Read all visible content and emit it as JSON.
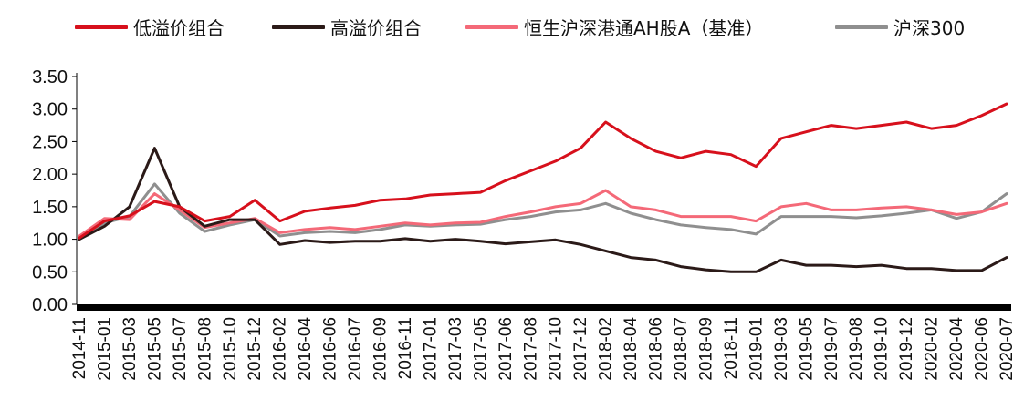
{
  "colors": {
    "low_premium": "#d7101c",
    "high_premium": "#2b1a18",
    "benchmark": "#f46978",
    "hs300": "#8f8f8f",
    "axis": "#000000"
  },
  "chart_data": {
    "type": "line",
    "title": "",
    "xlabel": "",
    "ylabel": "",
    "ylim": [
      0,
      3.5
    ],
    "yticks": [
      "0.00",
      "0.50",
      "1.00",
      "1.50",
      "2.00",
      "2.50",
      "3.00",
      "3.50"
    ],
    "grid": false,
    "legend_position": "top",
    "x": [
      "2014-11",
      "2015-01",
      "2015-03",
      "2015-05",
      "2015-07",
      "2015-08",
      "2015-10",
      "2015-12",
      "2016-02",
      "2016-04",
      "2016-06",
      "2016-07",
      "2016-09",
      "2016-11",
      "2017-01",
      "2017-03",
      "2017-05",
      "2017-06",
      "2017-08",
      "2017-10",
      "2017-12",
      "2018-02",
      "2018-04",
      "2018-06",
      "2018-07",
      "2018-09",
      "2018-11",
      "2019-01",
      "2019-03",
      "2019-05",
      "2019-07",
      "2019-08",
      "2019-10",
      "2019-12",
      "2020-02",
      "2020-04",
      "2020-06",
      "2020-07"
    ],
    "series": [
      {
        "name": "低溢价组合",
        "color_key": "low_premium",
        "values": [
          1.02,
          1.28,
          1.36,
          1.58,
          1.5,
          1.28,
          1.35,
          1.6,
          1.28,
          1.43,
          1.48,
          1.52,
          1.6,
          1.62,
          1.68,
          1.7,
          1.72,
          1.9,
          2.05,
          2.2,
          2.4,
          2.8,
          2.55,
          2.35,
          2.25,
          2.35,
          2.3,
          2.12,
          2.55,
          2.65,
          2.75,
          2.7,
          2.75,
          2.8,
          2.7,
          2.75,
          2.9,
          3.08
        ]
      },
      {
        "name": "高溢价组合",
        "color_key": "high_premium",
        "values": [
          1.0,
          1.2,
          1.5,
          2.4,
          1.5,
          1.2,
          1.3,
          1.3,
          0.92,
          0.98,
          0.95,
          0.97,
          0.97,
          1.01,
          0.97,
          1.0,
          0.97,
          0.93,
          0.96,
          0.99,
          0.92,
          0.82,
          0.72,
          0.68,
          0.58,
          0.53,
          0.5,
          0.5,
          0.68,
          0.6,
          0.6,
          0.58,
          0.6,
          0.55,
          0.55,
          0.52,
          0.52,
          0.72
        ]
      },
      {
        "name": "恒生沪深港通AH股A（基准）",
        "color_key": "benchmark",
        "values": [
          1.05,
          1.32,
          1.3,
          1.7,
          1.45,
          1.18,
          1.25,
          1.32,
          1.1,
          1.15,
          1.18,
          1.15,
          1.2,
          1.25,
          1.22,
          1.25,
          1.26,
          1.35,
          1.42,
          1.5,
          1.55,
          1.75,
          1.5,
          1.45,
          1.35,
          1.35,
          1.35,
          1.28,
          1.5,
          1.55,
          1.45,
          1.45,
          1.48,
          1.5,
          1.45,
          1.38,
          1.42,
          1.55
        ]
      },
      {
        "name": "沪深300",
        "color_key": "hs300",
        "values": [
          1.0,
          1.25,
          1.35,
          1.85,
          1.4,
          1.12,
          1.22,
          1.3,
          1.05,
          1.1,
          1.12,
          1.1,
          1.15,
          1.22,
          1.2,
          1.22,
          1.23,
          1.3,
          1.35,
          1.42,
          1.45,
          1.55,
          1.4,
          1.3,
          1.22,
          1.18,
          1.15,
          1.08,
          1.35,
          1.35,
          1.35,
          1.33,
          1.36,
          1.4,
          1.45,
          1.32,
          1.42,
          1.7
        ]
      }
    ]
  }
}
